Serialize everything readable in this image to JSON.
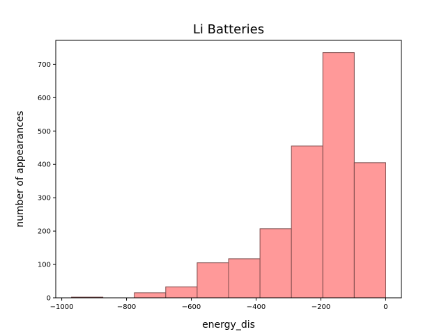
{
  "chart_data": {
    "type": "bar",
    "subtype": "histogram",
    "title": "Li Batteries",
    "xlabel": "energy_dis",
    "ylabel": "number of appearances",
    "bins": [
      {
        "x0": -970,
        "x1": -873,
        "count": 2
      },
      {
        "x0": -873,
        "x1": -776,
        "count": 0
      },
      {
        "x0": -776,
        "x1": -679,
        "count": 15
      },
      {
        "x0": -679,
        "x1": -582,
        "count": 33
      },
      {
        "x0": -582,
        "x1": -485,
        "count": 105
      },
      {
        "x0": -485,
        "x1": -388,
        "count": 117
      },
      {
        "x0": -388,
        "x1": -291,
        "count": 207
      },
      {
        "x0": -291,
        "x1": -194,
        "count": 455
      },
      {
        "x0": -194,
        "x1": -97,
        "count": 735
      },
      {
        "x0": -97,
        "x1": 0,
        "count": 405
      }
    ],
    "xlim": [
      -1018.5,
      48.5
    ],
    "ylim": [
      0,
      771.75
    ],
    "xticks": [
      -1000,
      -800,
      -600,
      -400,
      -200,
      0
    ],
    "xtick_labels": [
      "−1000",
      "−800",
      "−600",
      "−400",
      "−200",
      "0"
    ],
    "yticks": [
      0,
      100,
      200,
      300,
      400,
      500,
      600,
      700
    ],
    "ytick_labels": [
      "0",
      "100",
      "200",
      "300",
      "400",
      "500",
      "600",
      "700"
    ],
    "bar_color": "#ff9999",
    "edge_color": "#7f4c4c",
    "grid": false,
    "legend": "none"
  }
}
